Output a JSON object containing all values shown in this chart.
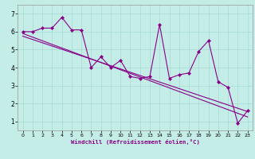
{
  "x_data": [
    0,
    1,
    2,
    3,
    4,
    5,
    6,
    7,
    8,
    9,
    10,
    11,
    12,
    13,
    14,
    15,
    16,
    17,
    18,
    19,
    20,
    21,
    22,
    23
  ],
  "y_data": [
    6.0,
    6.0,
    6.2,
    6.2,
    6.8,
    6.1,
    6.1,
    4.0,
    4.6,
    4.0,
    4.4,
    3.5,
    3.4,
    3.5,
    6.4,
    3.4,
    3.6,
    3.7,
    4.9,
    5.5,
    3.2,
    2.9,
    0.9,
    1.6
  ],
  "trend1_x": [
    0,
    23
  ],
  "trend1_y": [
    5.9,
    1.25
  ],
  "trend2_x": [
    0,
    23
  ],
  "trend2_y": [
    5.75,
    1.55
  ],
  "line_color": "#880088",
  "bg_color": "#C5EDE8",
  "grid_color": "#AADDD5",
  "xlabel": "Windchill (Refroidissement éolien,°C)",
  "xlim": [
    -0.5,
    23.5
  ],
  "ylim": [
    0.5,
    7.5
  ],
  "xticks": [
    0,
    1,
    2,
    3,
    4,
    5,
    6,
    7,
    8,
    9,
    10,
    11,
    12,
    13,
    14,
    15,
    16,
    17,
    18,
    19,
    20,
    21,
    22,
    23
  ],
  "yticks": [
    1,
    2,
    3,
    4,
    5,
    6,
    7
  ]
}
